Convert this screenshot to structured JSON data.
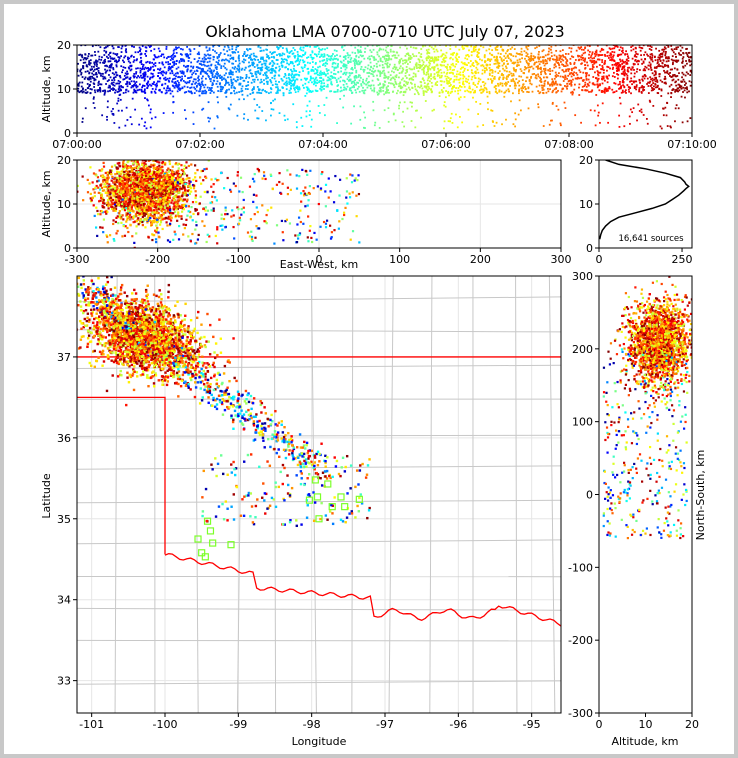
{
  "figure": {
    "title": "Oklahoma LMA 0700-0710 UTC July 07, 2023",
    "source_count_label": "16,641 sources"
  },
  "chart_data": [
    {
      "name": "time-height",
      "type": "scatter",
      "xlabel": "",
      "ylabel": "Altitude, km",
      "x_tick_labels": [
        "07:00:00",
        "07:02:00",
        "07:04:00",
        "07:06:00",
        "07:08:00",
        "07:10:00"
      ],
      "x_ticks_minutes": [
        0,
        2,
        4,
        6,
        8,
        10
      ],
      "xlim_minutes": [
        0,
        10
      ],
      "ylim": [
        0,
        20
      ],
      "y_ticks": [
        0,
        10,
        20
      ],
      "color_by": "time",
      "colormap": "jet",
      "altitude_core_km": [
        9,
        18
      ],
      "grid": false
    },
    {
      "name": "ew-altitude",
      "type": "scatter",
      "xlabel": "East-West, km",
      "ylabel": "Altitude, km",
      "xlim": [
        -300,
        300
      ],
      "x_ticks": [
        -300,
        -200,
        -100,
        0,
        100,
        200,
        300
      ],
      "ylim": [
        0,
        20
      ],
      "y_ticks": [
        0,
        10,
        20
      ],
      "color_by": "time",
      "core_center_ew_km": -215,
      "grid": true
    },
    {
      "name": "altitude-histogram",
      "type": "line",
      "xlabel": "",
      "ylabel": "",
      "xlim": [
        0,
        280
      ],
      "x_ticks": [
        0,
        250
      ],
      "ylim": [
        0,
        20
      ],
      "y_ticks": [
        0,
        10,
        20
      ],
      "series": [
        {
          "altitude_km": [
            2,
            3,
            4,
            5,
            6,
            7,
            8,
            9,
            10,
            11,
            12,
            13,
            13.5,
            14,
            14.5,
            15,
            16,
            17,
            18,
            19,
            20
          ],
          "count": [
            2,
            5,
            10,
            20,
            35,
            60,
            110,
            160,
            200,
            220,
            240,
            255,
            262,
            270,
            262,
            258,
            245,
            200,
            140,
            60,
            20
          ]
        }
      ]
    },
    {
      "name": "plan-view",
      "type": "scatter",
      "xlabel": "Longitude",
      "ylabel": "Latitude",
      "xlim": [
        -101.2,
        -94.6
      ],
      "x_ticks": [
        -101,
        -100,
        -99,
        -98,
        -97,
        -96,
        -95
      ],
      "ylim": [
        32.6,
        38.0
      ],
      "y_ticks": [
        33,
        34,
        35,
        36,
        37
      ],
      "color_by": "time",
      "core_center": [
        -100.3,
        37.25
      ],
      "stations": [
        [
          -97.95,
          35.48
        ],
        [
          -97.78,
          35.43
        ],
        [
          -98.03,
          35.23
        ],
        [
          -97.92,
          35.27
        ],
        [
          -97.6,
          35.27
        ],
        [
          -97.55,
          35.15
        ],
        [
          -97.35,
          35.24
        ],
        [
          -97.72,
          35.15
        ],
        [
          -97.9,
          35.0
        ],
        [
          -99.42,
          34.97
        ],
        [
          -99.38,
          34.85
        ],
        [
          -99.55,
          34.75
        ],
        [
          -99.35,
          34.7
        ],
        [
          -99.1,
          34.68
        ],
        [
          -99.5,
          34.58
        ],
        [
          -99.45,
          34.53
        ]
      ],
      "grid": true
    },
    {
      "name": "altitude-ns",
      "type": "scatter",
      "xlabel": "Altitude, km",
      "ylabel": "North-South, km",
      "xlim": [
        0,
        20
      ],
      "x_ticks": [
        0,
        10,
        20
      ],
      "ylim": [
        -300,
        300
      ],
      "y_ticks": [
        -300,
        -200,
        -100,
        0,
        100,
        200,
        300
      ],
      "color_by": "time",
      "core_center_ns_km": 210,
      "grid": false
    }
  ]
}
